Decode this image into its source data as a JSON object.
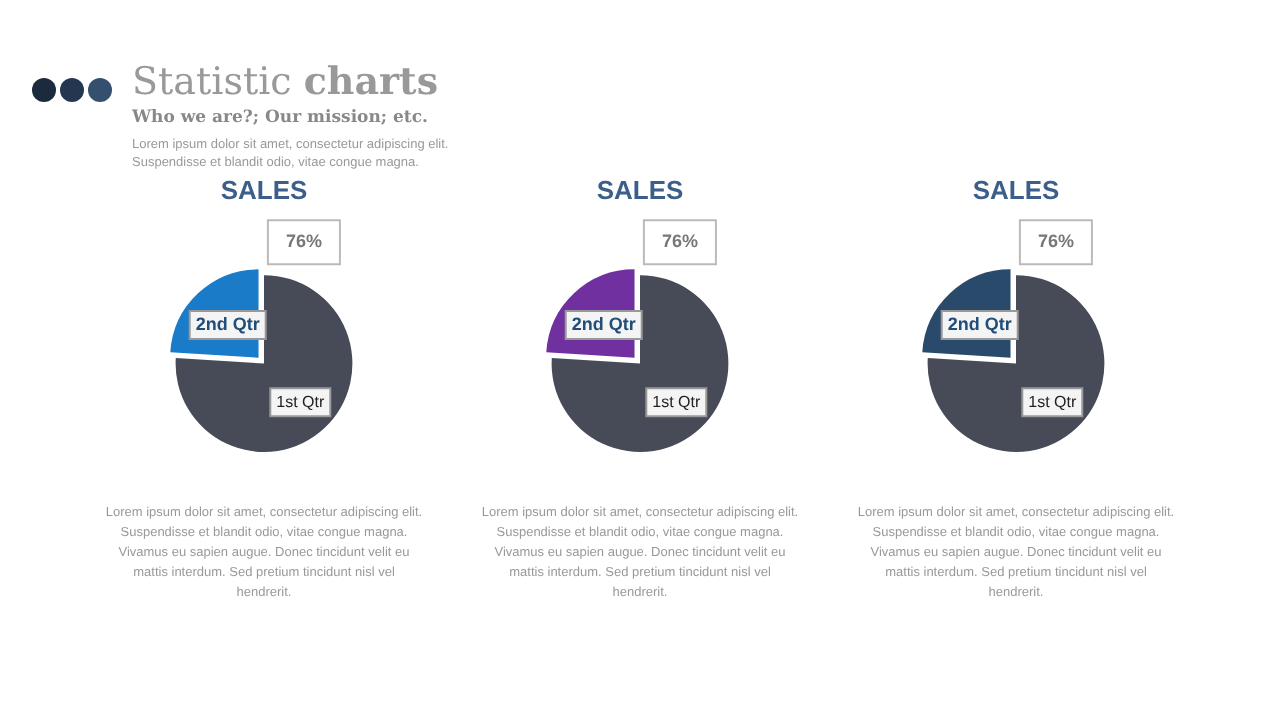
{
  "chart_data": [
    {
      "type": "other",
      "title": "Statistic charts",
      "subtitle": "Who we are?; Our mission; etc.",
      "annotations": [
        "Lorem ipsum dolor sit amet, consectetur adipiscing elit.\nSuspendisse et blandit odio, vitae congue magna."
      ]
    },
    {
      "type": "pie",
      "title": "SALES",
      "categories": [
        "1st Qtr",
        "2nd Qtr"
      ],
      "values": [
        76,
        24
      ],
      "colors": [
        "#474b57",
        "#1a7bc8"
      ],
      "value_labels": [
        "76%",
        null
      ],
      "annotations": [
        "Lorem ipsum dolor sit amet, consectetur adipiscing elit.\nSuspendisse et blandit odio, vitae congue magna.\nVivamus eu sapien augue. Donec tincidunt velit eu\nmattis interdum. Sed pretium tincidunt nisl vel\nhendrerit."
      ]
    },
    {
      "type": "pie",
      "title": "SALES",
      "categories": [
        "1st Qtr",
        "2nd Qtr"
      ],
      "values": [
        76,
        24
      ],
      "colors": [
        "#474b57",
        "#7030a0"
      ],
      "value_labels": [
        "76%",
        null
      ],
      "annotations": [
        "Lorem ipsum dolor sit amet, consectetur adipiscing elit.\nSuspendisse et blandit odio, vitae congue magna.\nVivamus eu sapien augue. Donec tincidunt velit eu\nmattis interdum. Sed pretium tincidunt nisl vel\nhendrerit."
      ]
    },
    {
      "type": "pie",
      "title": "SALES",
      "categories": [
        "1st Qtr",
        "2nd Qtr"
      ],
      "values": [
        76,
        24
      ],
      "colors": [
        "#474b57",
        "#2a4a6b"
      ],
      "value_labels": [
        "76%",
        null
      ],
      "annotations": [
        "Lorem ipsum dolor sit amet, consectetur adipiscing elit.\nSuspendisse et blandit odio, vitae congue magna.\nVivamus eu sapien augue. Donec tincidunt velit eu\nmattis interdum. Sed pretium tincidunt nisl vel\nhendrerit."
      ]
    }
  ]
}
